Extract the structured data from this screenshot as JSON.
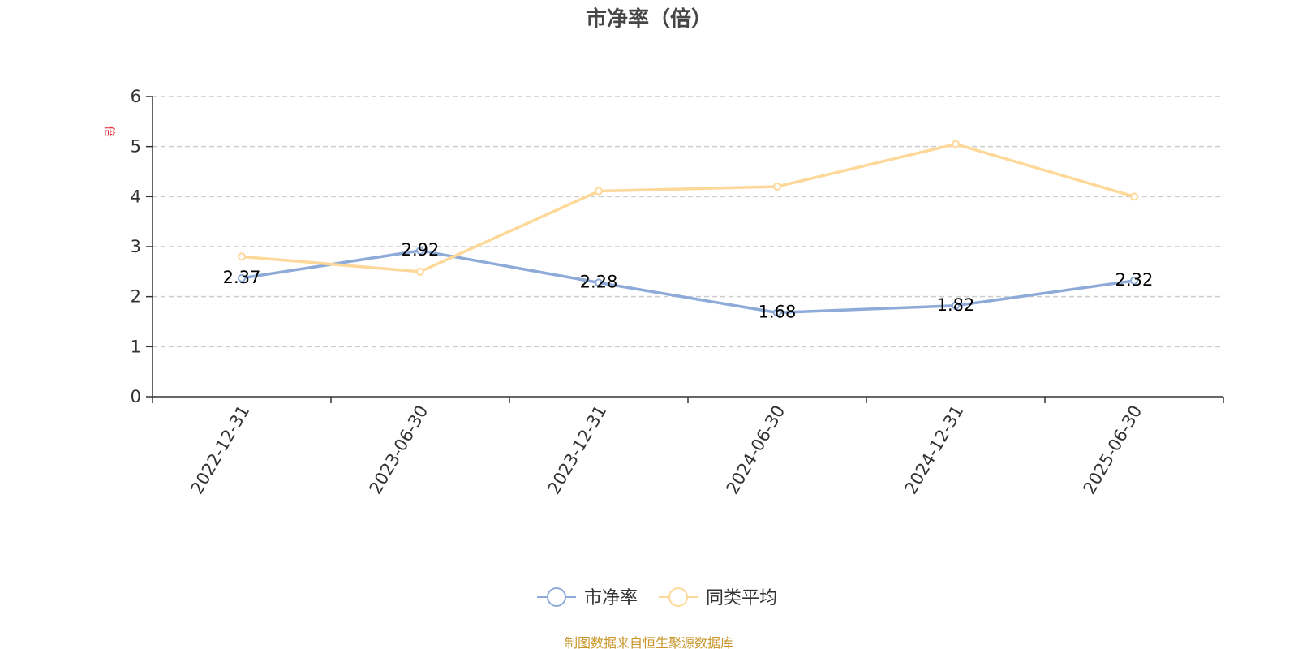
{
  "chart_data": {
    "type": "line",
    "title": "市净率（倍）",
    "ylabel": "倍",
    "categories": [
      "2022-12-31",
      "2023-06-30",
      "2023-12-31",
      "2024-06-30",
      "2024-12-31",
      "2025-06-30"
    ],
    "series": [
      {
        "name": "市净率",
        "values": [
          2.37,
          2.92,
          2.28,
          1.68,
          1.82,
          2.32
        ],
        "color": "#8eaad8",
        "show_labels": true
      },
      {
        "name": "同类平均",
        "values": [
          2.8,
          2.5,
          4.11,
          4.2,
          5.05,
          4.0
        ],
        "color": "#fdd898",
        "show_labels": false
      }
    ],
    "ylim": [
      0,
      6
    ],
    "yticks": [
      0,
      1,
      2,
      3,
      4,
      5,
      6
    ],
    "grid": true,
    "legend_position": "bottom-center"
  },
  "colors": {
    "unit_label": "#e0212a",
    "source": "#c8962a",
    "axis": "#333333",
    "grid": "#cccccc"
  },
  "source_note": "制图数据来自恒生聚源数据库"
}
